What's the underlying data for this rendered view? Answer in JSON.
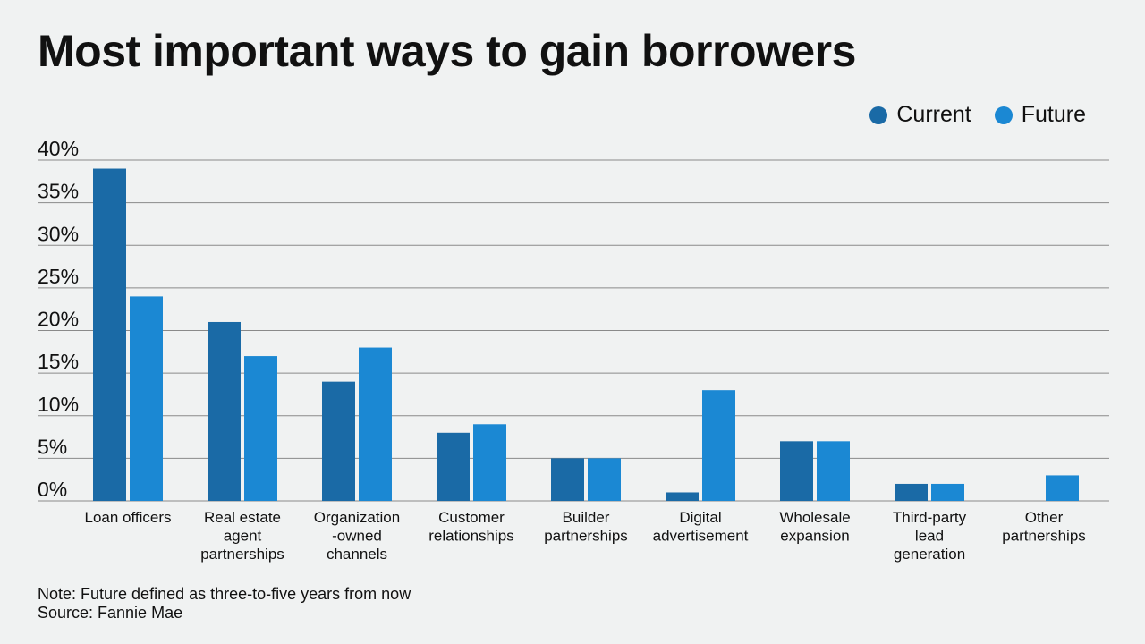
{
  "title": "Most important ways to gain borrowers",
  "notes": {
    "note": "Note: Future defined as three-to-five years from now",
    "source": "Source: Fannie Mae"
  },
  "colors": {
    "current": "#1a6aa6",
    "future": "#1b88d3",
    "grid": "#8a8a8a"
  },
  "chart_data": {
    "type": "bar",
    "title": "Most important ways to gain borrowers",
    "xlabel": "",
    "ylabel": "",
    "ylim": [
      0,
      40
    ],
    "yticks": [
      "0%",
      "5%",
      "10%",
      "15%",
      "20%",
      "25%",
      "30%",
      "35%",
      "40%"
    ],
    "legend": "top-right",
    "grid": true,
    "categories": [
      [
        "Loan officers"
      ],
      [
        "Real estate",
        "agent",
        "partnerships"
      ],
      [
        "Organization",
        "-owned",
        "channels"
      ],
      [
        "Customer",
        "relationships"
      ],
      [
        "Builder",
        "partnerships"
      ],
      [
        "Digital",
        "advertisement"
      ],
      [
        "Wholesale",
        "expansion"
      ],
      [
        "Third-party",
        "lead",
        "generation"
      ],
      [
        "Other",
        "partnerships"
      ]
    ],
    "series": [
      {
        "name": "Current",
        "values": [
          39,
          21,
          14,
          8,
          5,
          1,
          7,
          2,
          0
        ]
      },
      {
        "name": "Future",
        "values": [
          24,
          17,
          18,
          9,
          5,
          13,
          7,
          2,
          3
        ]
      }
    ]
  }
}
